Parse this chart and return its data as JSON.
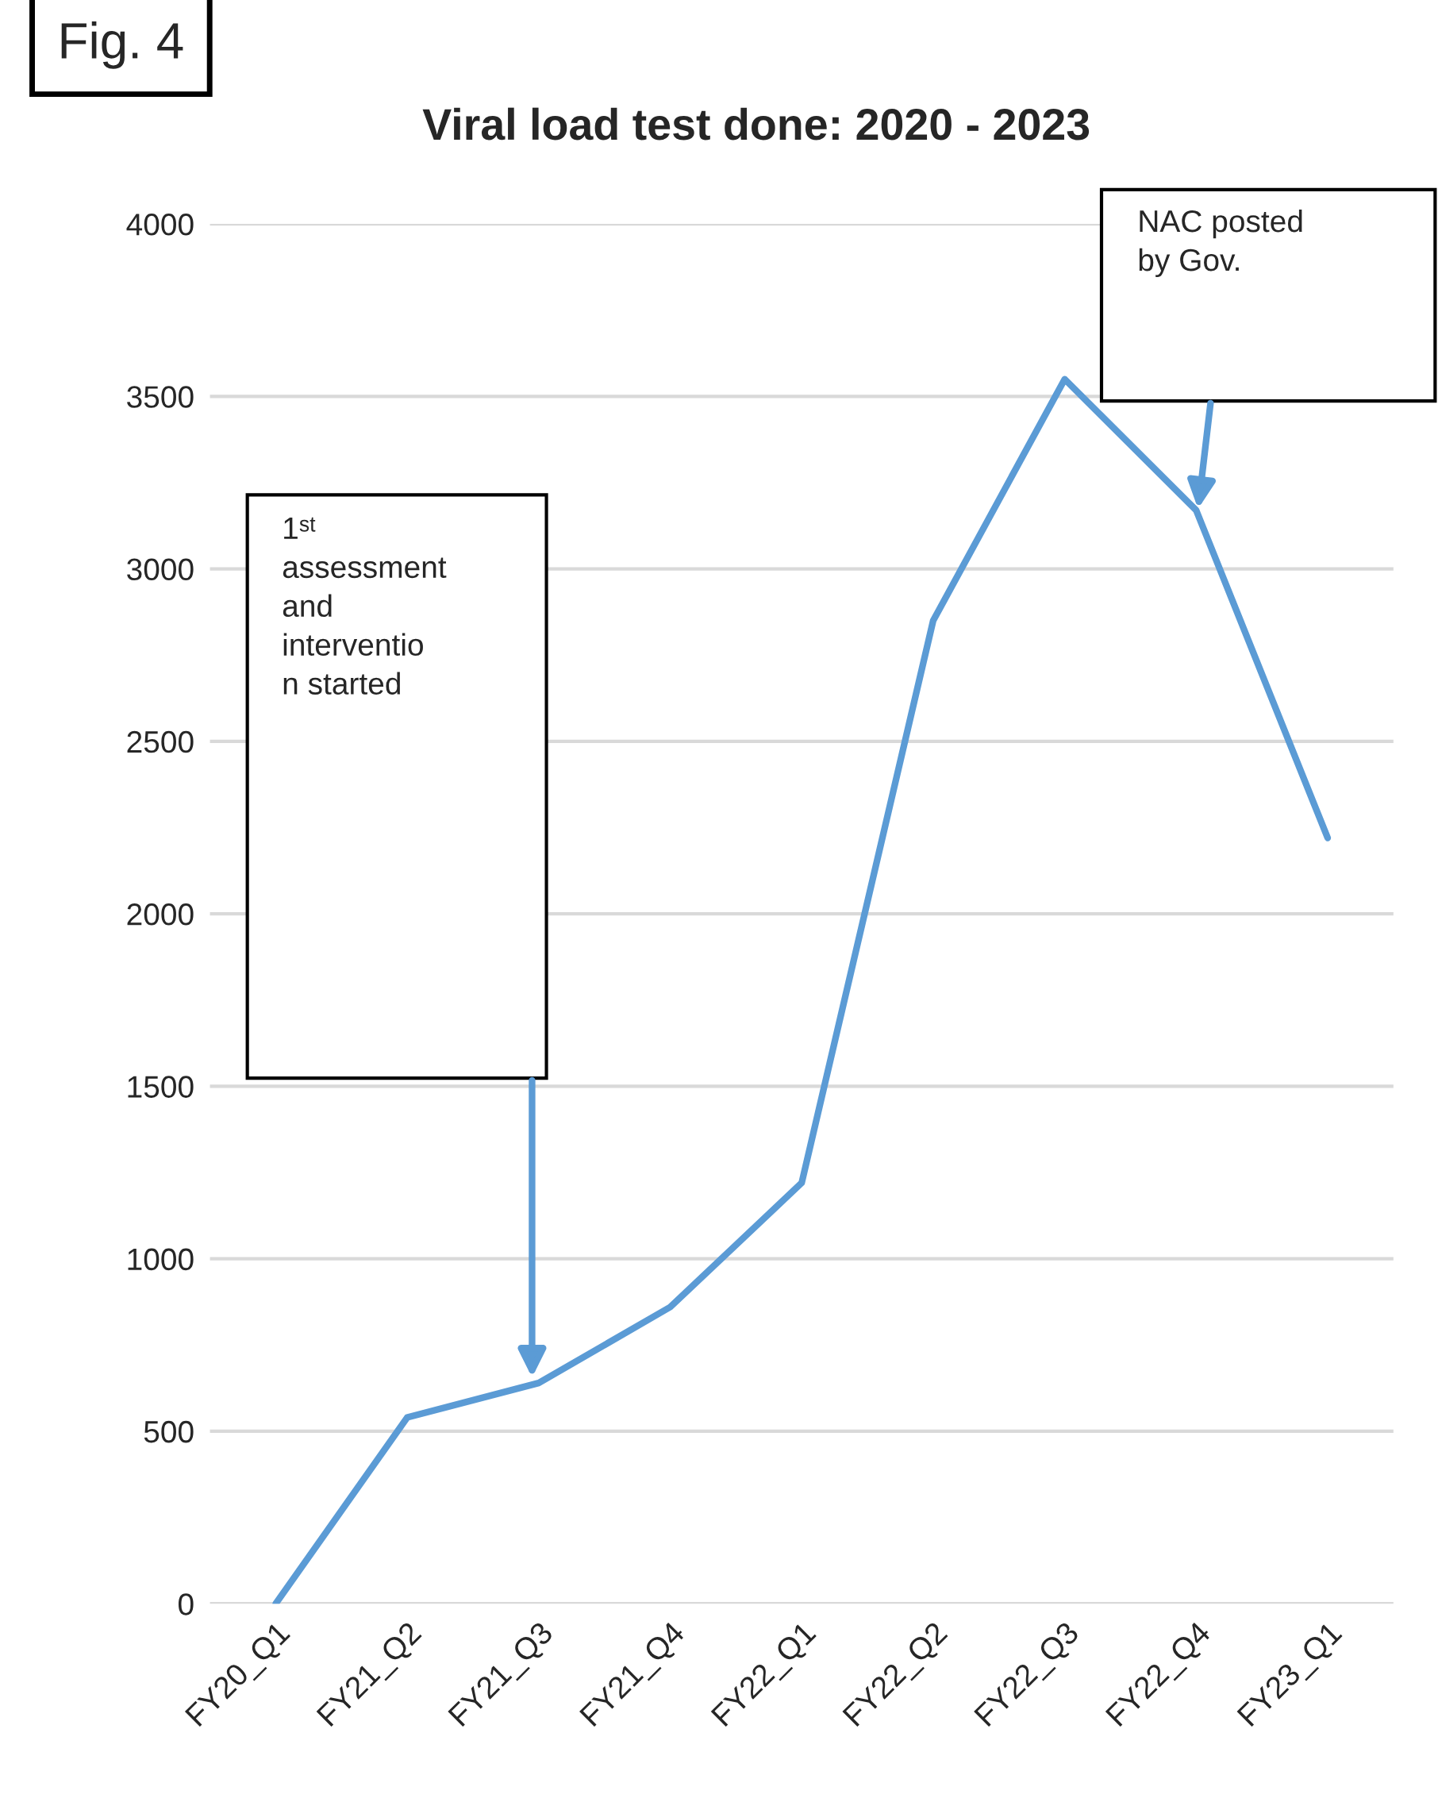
{
  "chart_data": {
    "type": "line",
    "title": "Viral load test done: 2020 - 2023",
    "categories": [
      "FY20_Q1",
      "FY21_Q2",
      "FY21_Q3",
      "FY21_Q4",
      "FY22_Q1",
      "FY22_Q2",
      "FY22_Q3",
      "FY22_Q4",
      "FY23_Q1"
    ],
    "series": [
      {
        "color": "#5b9bd5",
        "values": [
          0,
          540,
          640,
          860,
          1220,
          2850,
          3550,
          3170,
          2220
        ]
      }
    ],
    "ylim": [
      0,
      4000
    ],
    "yticks": [
      0,
      500,
      1000,
      1500,
      2000,
      2500,
      3000,
      3500,
      4000
    ],
    "grid": "y",
    "legend": false,
    "marker": "none",
    "line_style": "solid",
    "annotations": [
      "Fig. 4",
      "1ˢᵗ\nassessment\nand\ninterventio\nn started",
      "NAC posted\nby Gov."
    ]
  }
}
